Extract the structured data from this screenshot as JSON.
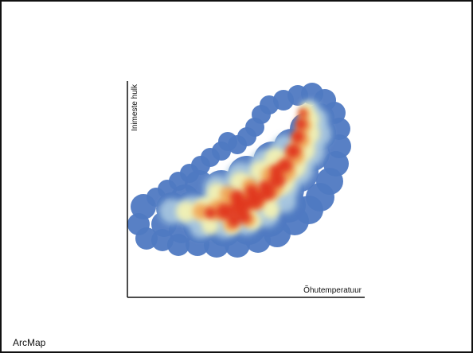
{
  "footer": {
    "app_name": "ArcMap"
  },
  "chart_data": {
    "type": "heatmap",
    "title": "",
    "xlabel": "Õhutemperatuur",
    "ylabel": "Inimeste hulk",
    "x_ticks": [],
    "y_ticks": [],
    "grid": false,
    "legend": "none",
    "colors": {
      "low": "#4f79c2",
      "mid_low": "#a9c8e0",
      "mid": "#f2f1b3",
      "mid_high": "#f0a85a",
      "high": "#e0351e",
      "axis": "#111111"
    },
    "density_pattern": "points spread in a diagonal band that rises from the lower left to the upper right; highest density in the center of the band"
  }
}
